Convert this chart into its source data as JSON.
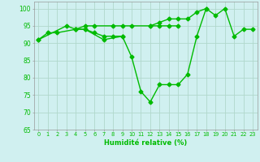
{
  "x": [
    0,
    1,
    2,
    3,
    4,
    5,
    6,
    7,
    8,
    9,
    10,
    11,
    12,
    13,
    14,
    15,
    16,
    17,
    18,
    19,
    20,
    21,
    22,
    23
  ],
  "series1": [
    91,
    93,
    93,
    null,
    94,
    94,
    93,
    92,
    92,
    92,
    null,
    null,
    null,
    null,
    null,
    null,
    null,
    null,
    null,
    null,
    null,
    null,
    null,
    null
  ],
  "series2": [
    91,
    null,
    null,
    95,
    94,
    94,
    null,
    91,
    null,
    92,
    86,
    76,
    73,
    78,
    78,
    78,
    81,
    92,
    100,
    98,
    100,
    92,
    94,
    94
  ],
  "series3": [
    null,
    null,
    null,
    null,
    94,
    95,
    95,
    null,
    95,
    95,
    95,
    null,
    95,
    95,
    95,
    95,
    null,
    null,
    null,
    null,
    null,
    null,
    null,
    null
  ],
  "series4": [
    null,
    null,
    null,
    null,
    null,
    null,
    null,
    null,
    null,
    null,
    null,
    null,
    95,
    96,
    97,
    97,
    97,
    99,
    100,
    null,
    null,
    null,
    null,
    null
  ],
  "ylim": [
    65,
    102
  ],
  "yticks": [
    65,
    70,
    75,
    80,
    85,
    90,
    95,
    100
  ],
  "xticks": [
    0,
    1,
    2,
    3,
    4,
    5,
    6,
    7,
    8,
    9,
    10,
    11,
    12,
    13,
    14,
    15,
    16,
    17,
    18,
    19,
    20,
    21,
    22,
    23
  ],
  "xlabel": "Humidité relative (%)",
  "line_color": "#00bb00",
  "bg_color": "#d0f0f0",
  "grid_color": "#b0d8cc",
  "marker": "D",
  "marker_size": 2.5,
  "linewidth": 1.0
}
